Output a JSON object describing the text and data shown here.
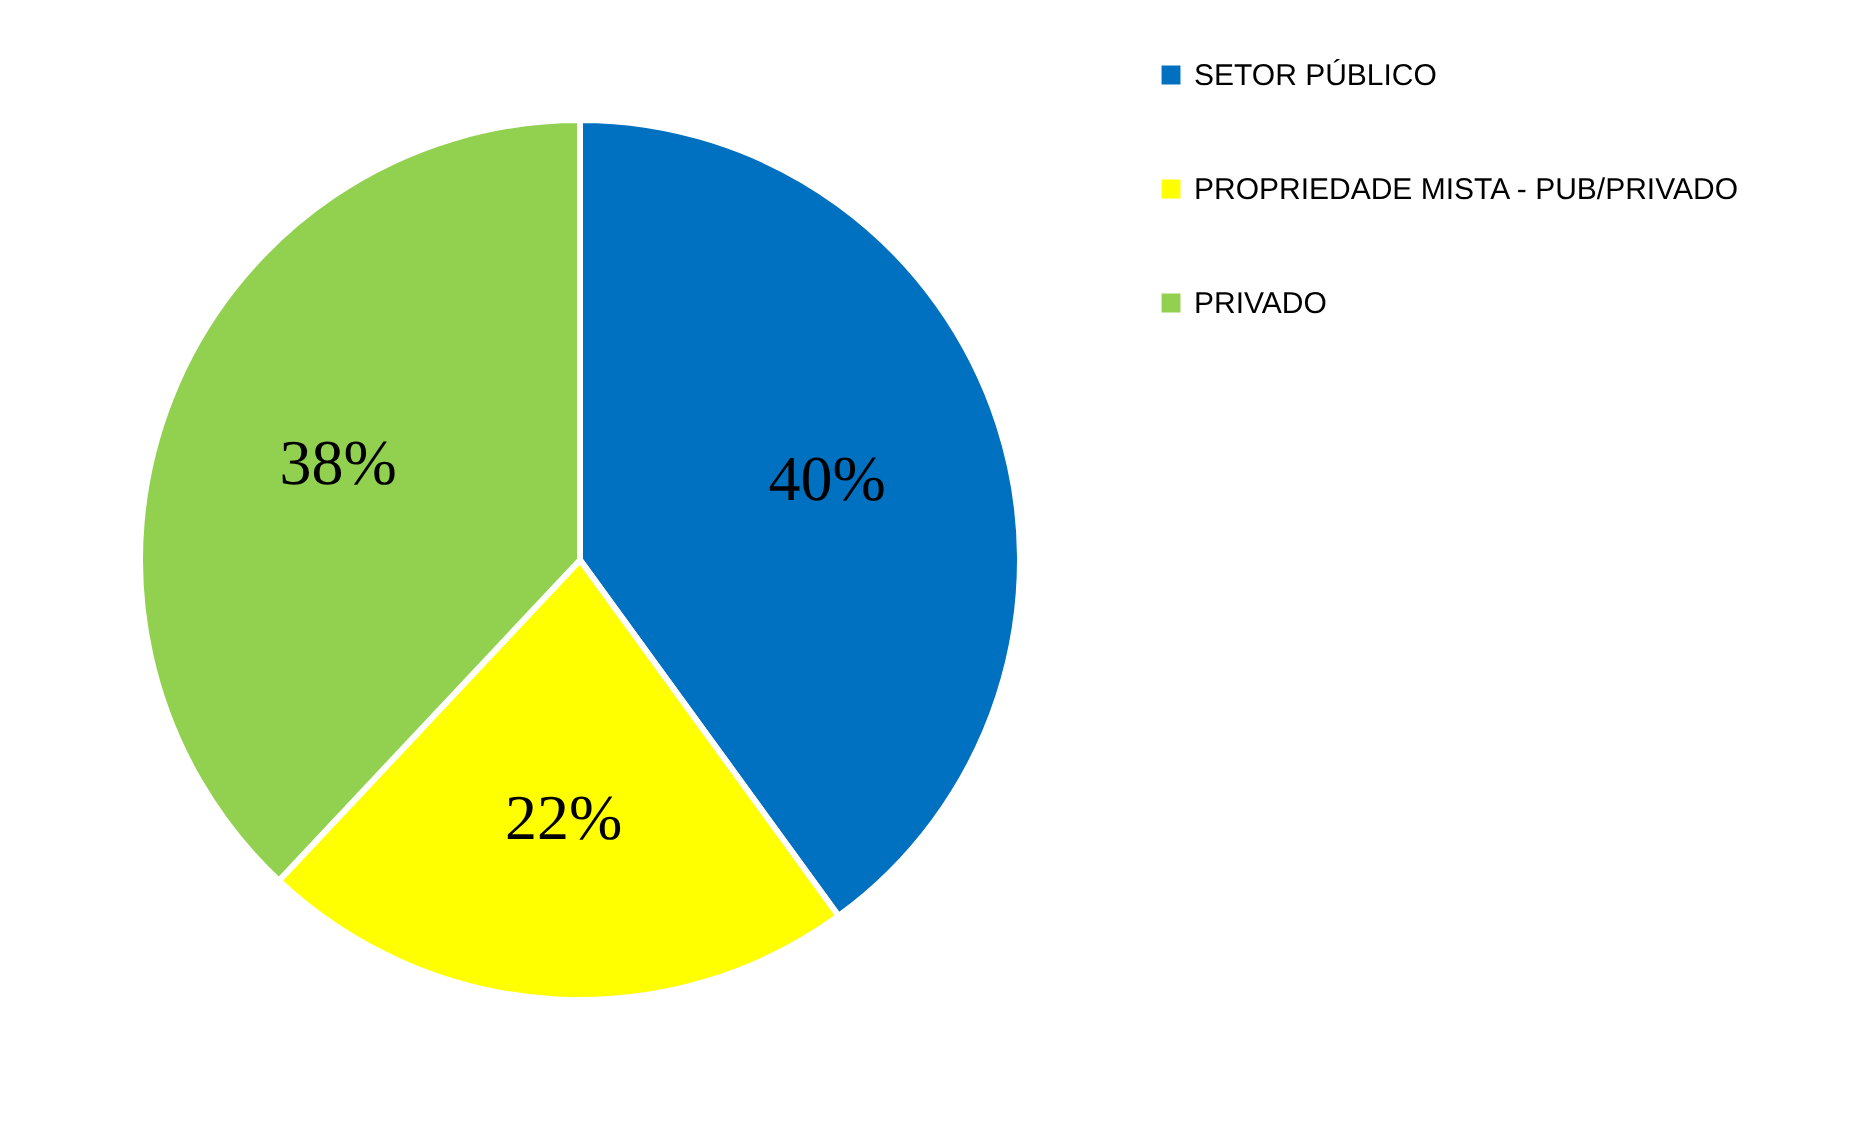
{
  "chart_data": {
    "type": "pie",
    "categories": [
      "SETOR PÚBLICO",
      "PROPRIEDADE MISTA - PUB/PRIVADO",
      "PRIVADO"
    ],
    "values": [
      40,
      22,
      38
    ],
    "colors": [
      "#0070c0",
      "#ffff00",
      "#92d050"
    ],
    "value_labels": [
      "40%",
      "22%",
      "38%"
    ],
    "legend": "right"
  }
}
